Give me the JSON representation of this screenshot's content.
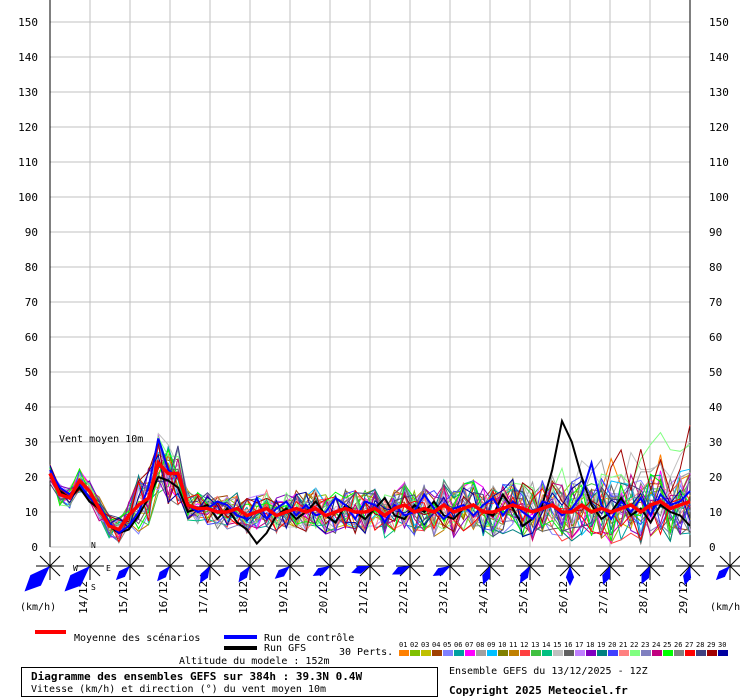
{
  "chart_data": {
    "type": "line",
    "ylim": [
      0,
      150
    ],
    "yticks": [
      0,
      10,
      20,
      30,
      40,
      50,
      60,
      70,
      80,
      90,
      100,
      110,
      120,
      130,
      140,
      150
    ],
    "x": [
      "14/12",
      "15/12",
      "16/12",
      "17/12",
      "18/12",
      "19/12",
      "20/12",
      "21/12",
      "22/12",
      "23/12",
      "24/12",
      "25/12",
      "26/12",
      "27/12",
      "28/12",
      "29/12"
    ],
    "ylabel_left": "(km/h)",
    "ylabel_right": "(km/h)",
    "annotation": "Vent moyen 10m",
    "mean_series": {
      "name": "Moyenne des scénarios",
      "color": "#ff0000",
      "values": [
        21,
        15,
        14,
        19,
        16,
        11,
        6,
        5,
        9,
        12,
        14,
        24,
        21,
        21,
        12,
        11,
        11,
        10,
        10,
        11,
        9,
        10,
        11,
        9,
        10,
        11,
        10,
        11,
        9,
        10,
        11,
        10,
        10,
        11,
        9,
        11,
        12,
        10,
        11,
        10,
        12,
        10,
        11,
        12,
        10,
        10,
        11,
        12,
        11,
        10,
        11,
        12,
        10,
        10,
        12,
        10,
        11,
        10,
        11,
        12,
        10,
        12,
        13,
        11,
        12,
        13
      ]
    },
    "control_series": {
      "name": "Run de contrôle",
      "color": "#0000ff",
      "values": [
        22,
        17,
        15,
        18,
        14,
        12,
        7,
        4,
        6,
        10,
        17,
        31,
        22,
        20,
        12,
        10,
        11,
        13,
        12,
        9,
        8,
        14,
        8,
        11,
        13,
        9,
        12,
        9,
        10,
        14,
        12,
        8,
        13,
        12,
        7,
        12,
        9,
        10,
        15,
        11,
        8,
        11,
        12,
        9,
        12,
        14,
        9,
        13,
        10,
        8,
        13,
        12,
        9,
        11,
        15,
        24,
        12,
        8,
        13,
        10,
        14,
        9,
        15,
        12,
        13,
        16
      ]
    },
    "gfs_series": {
      "name": "Run GFS",
      "color": "#000000",
      "values": [
        21,
        16,
        14,
        17,
        13,
        11,
        6,
        4,
        5,
        9,
        14,
        20,
        19,
        17,
        10,
        11,
        12,
        8,
        11,
        7,
        5,
        1,
        4,
        9,
        11,
        8,
        10,
        13,
        9,
        7,
        12,
        10,
        8,
        11,
        14,
        9,
        8,
        12,
        10,
        13,
        9,
        8,
        11,
        12,
        10,
        9,
        15,
        11,
        6,
        8,
        12,
        22,
        36,
        30,
        20,
        12,
        8,
        10,
        14,
        9,
        11,
        7,
        12,
        10,
        9,
        6
      ]
    },
    "perturbations_label": "30 Perts.",
    "pert_numbers": [
      "01",
      "02",
      "03",
      "04",
      "05",
      "06",
      "07",
      "08",
      "09",
      "10",
      "11",
      "12",
      "13",
      "14",
      "15",
      "16",
      "17",
      "18",
      "19",
      "20",
      "21",
      "22",
      "23",
      "24",
      "25",
      "26",
      "27",
      "28",
      "29",
      "30"
    ],
    "pert_colors": [
      "#ff8000",
      "#80c000",
      "#c0c000",
      "#a04000",
      "#8080ff",
      "#00a0a0",
      "#ff00ff",
      "#a0a0a0",
      "#00c0ff",
      "#808000",
      "#c08000",
      "#ff4040",
      "#40c040",
      "#00c080",
      "#c0c0c0",
      "#606060",
      "#c080ff",
      "#8000c0",
      "#008080",
      "#4040ff",
      "#ff8080",
      "#80ff80",
      "#8080c0",
      "#c00080",
      "#00ff00",
      "#808080",
      "#ff0000",
      "#404080",
      "#a00000",
      "#0000a0"
    ],
    "wind_directions": [
      225,
      225,
      225,
      220,
      210,
      215,
      230,
      240,
      250,
      245,
      240,
      200,
      210,
      180,
      200,
      205,
      195,
      225,
      215,
      230
    ],
    "legend": {
      "mean": "Moyenne des scénarios",
      "control": "Run de contrôle",
      "gfs": "Run GFS"
    },
    "colors": {
      "grid": "#c0c0c0",
      "wind_rose": "#0000ff",
      "mean": "#ff0000"
    }
  },
  "altitude": "Altitude du modele : 152m",
  "info": {
    "title": "Diagramme des ensembles GEFS sur 384h : 39.3N 0.4W",
    "subtitle": "Vitesse (km/h) et direction (°) du vent moyen 10m",
    "run": "Ensemble GEFS du 13/12/2025 - 12Z",
    "copyright": "Copyright 2025 Meteociel.fr"
  }
}
